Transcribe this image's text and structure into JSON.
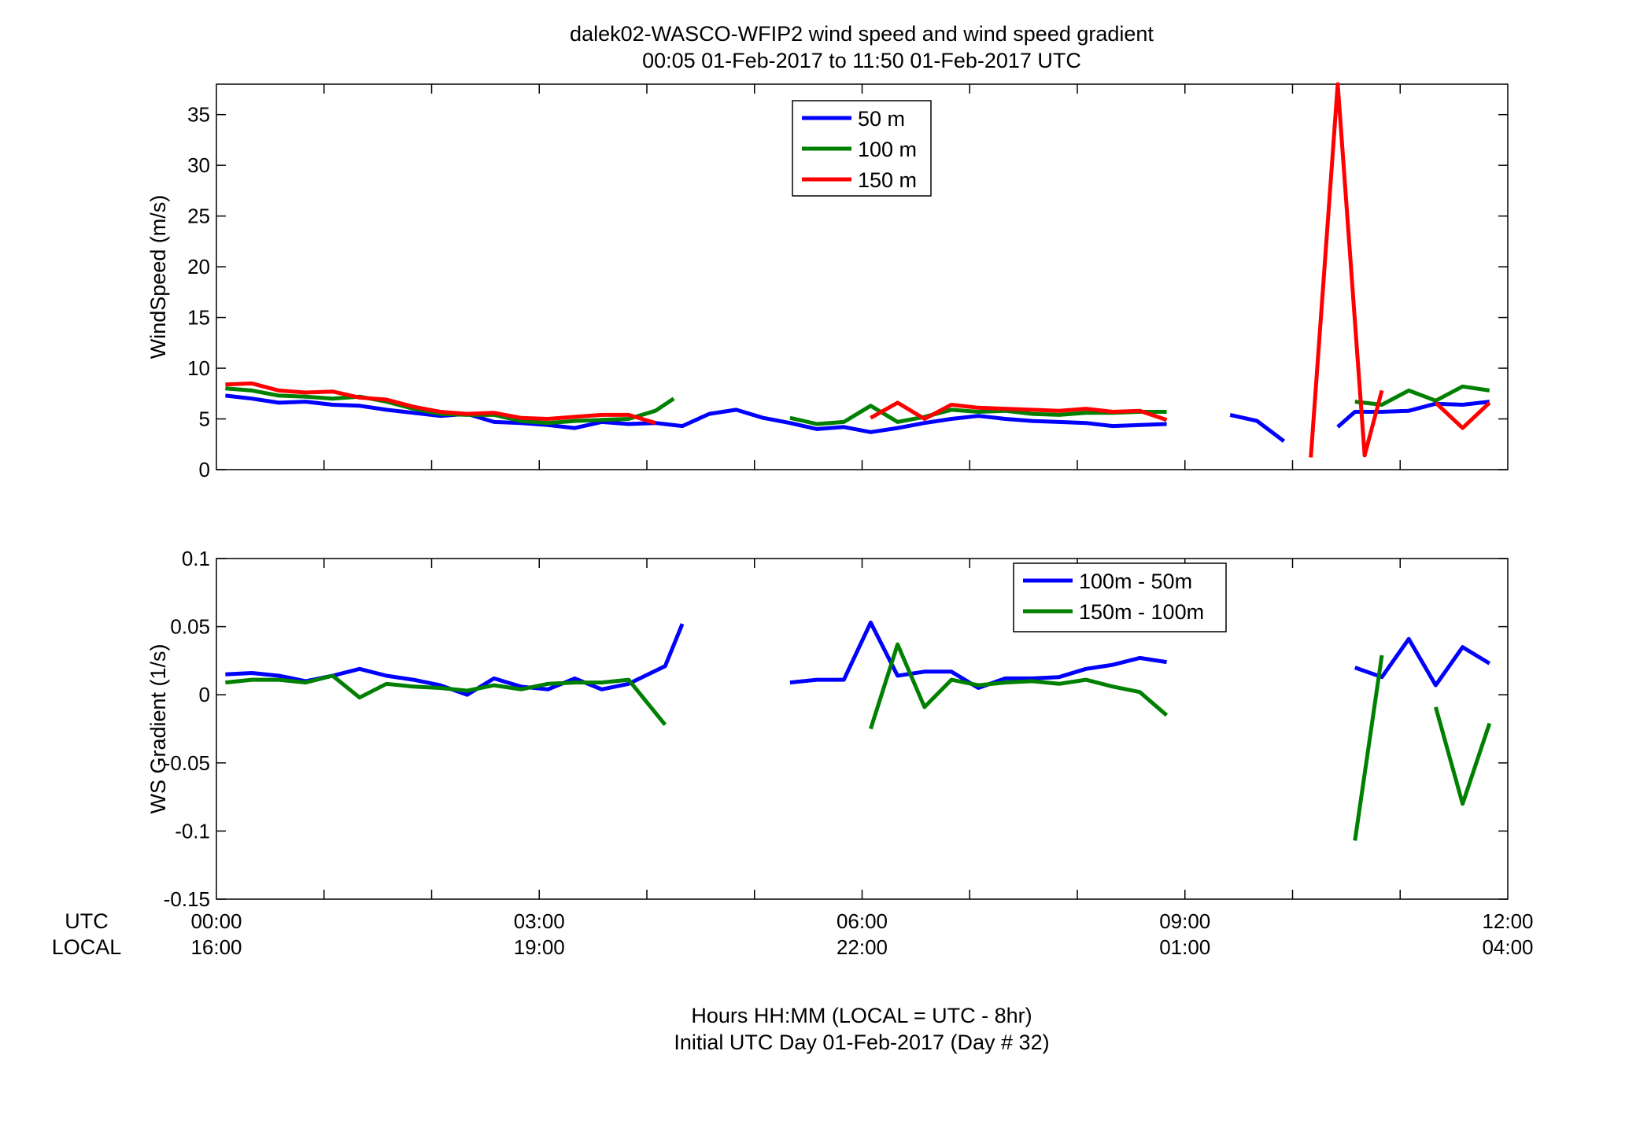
{
  "chart_data": [
    {
      "type": "line",
      "title": "dalek02-WASCO-WFIP2  wind speed and wind speed gradient",
      "subtitle": "00:05 01-Feb-2017 to 11:50 01-Feb-2017  UTC",
      "ylabel": "WindSpeed (m/s)",
      "xlim": [
        0,
        12
      ],
      "ylim": [
        0,
        38
      ],
      "yticks": [
        0,
        5,
        10,
        15,
        20,
        25,
        30,
        35
      ],
      "grid": false,
      "legend_position": "top-center",
      "series": [
        {
          "name": "50 m",
          "color": "#0000ff",
          "points": [
            [
              0.083,
              7.3
            ],
            [
              0.33,
              7.0
            ],
            [
              0.58,
              6.6
            ],
            [
              0.83,
              6.7
            ],
            [
              1.08,
              6.4
            ],
            [
              1.33,
              6.3
            ],
            [
              1.58,
              5.9
            ],
            [
              1.83,
              5.6
            ],
            [
              2.08,
              5.3
            ],
            [
              2.33,
              5.5
            ],
            [
              2.58,
              4.7
            ],
            [
              2.83,
              4.6
            ],
            [
              3.08,
              4.4
            ],
            [
              3.33,
              4.1
            ],
            [
              3.58,
              4.7
            ],
            [
              3.83,
              4.5
            ],
            [
              4.08,
              4.6
            ],
            [
              4.33,
              4.3
            ],
            [
              4.58,
              5.5
            ],
            [
              4.83,
              5.9
            ],
            [
              5.08,
              5.1
            ],
            [
              5.33,
              4.6
            ],
            [
              5.58,
              4.0
            ],
            [
              5.83,
              4.2
            ],
            [
              6.08,
              3.7
            ],
            [
              6.33,
              4.1
            ],
            [
              6.58,
              4.6
            ],
            [
              6.83,
              5.0
            ],
            [
              7.08,
              5.3
            ],
            [
              7.33,
              5.0
            ],
            [
              7.58,
              4.8
            ],
            [
              7.83,
              4.7
            ],
            [
              8.08,
              4.6
            ],
            [
              8.33,
              4.3
            ],
            [
              8.58,
              4.4
            ],
            [
              8.83,
              4.5
            ],
            null,
            [
              9.42,
              5.4
            ],
            [
              9.67,
              4.8
            ],
            [
              9.92,
              2.8
            ],
            null,
            [
              10.42,
              4.2
            ],
            [
              10.58,
              5.7
            ],
            [
              10.83,
              5.7
            ],
            [
              11.08,
              5.8
            ],
            [
              11.33,
              6.5
            ],
            [
              11.58,
              6.4
            ],
            [
              11.83,
              6.7
            ]
          ]
        },
        {
          "name": "100 m",
          "color": "#008000",
          "points": [
            [
              0.083,
              8.0
            ],
            [
              0.33,
              7.8
            ],
            [
              0.58,
              7.3
            ],
            [
              0.83,
              7.2
            ],
            [
              1.08,
              7.0
            ],
            [
              1.33,
              7.2
            ],
            [
              1.58,
              6.7
            ],
            [
              1.83,
              6.0
            ],
            [
              2.08,
              5.5
            ],
            [
              2.33,
              5.4
            ],
            [
              2.58,
              5.4
            ],
            [
              2.83,
              4.8
            ],
            [
              3.08,
              4.6
            ],
            [
              3.33,
              4.8
            ],
            [
              3.58,
              4.9
            ],
            [
              3.83,
              5.0
            ],
            [
              4.08,
              5.8
            ],
            [
              4.25,
              7.0
            ],
            null,
            [
              5.33,
              5.1
            ],
            [
              5.58,
              4.5
            ],
            [
              5.83,
              4.7
            ],
            [
              6.08,
              6.3
            ],
            [
              6.33,
              4.7
            ],
            [
              6.58,
              5.2
            ],
            [
              6.83,
              5.9
            ],
            [
              7.08,
              5.7
            ],
            [
              7.33,
              5.8
            ],
            [
              7.58,
              5.5
            ],
            [
              7.83,
              5.4
            ],
            [
              8.08,
              5.6
            ],
            [
              8.33,
              5.6
            ],
            [
              8.58,
              5.7
            ],
            [
              8.83,
              5.7
            ],
            null,
            [
              10.58,
              6.7
            ],
            [
              10.83,
              6.4
            ],
            [
              11.08,
              7.8
            ],
            [
              11.33,
              6.8
            ],
            [
              11.58,
              8.2
            ],
            [
              11.83,
              7.8
            ]
          ]
        },
        {
          "name": "150 m",
          "color": "#ff0000",
          "points": [
            [
              0.083,
              8.4
            ],
            [
              0.33,
              8.5
            ],
            [
              0.58,
              7.8
            ],
            [
              0.83,
              7.6
            ],
            [
              1.08,
              7.7
            ],
            [
              1.33,
              7.1
            ],
            [
              1.58,
              6.9
            ],
            [
              1.83,
              6.2
            ],
            [
              2.08,
              5.7
            ],
            [
              2.33,
              5.5
            ],
            [
              2.58,
              5.6
            ],
            [
              2.83,
              5.1
            ],
            [
              3.08,
              5.0
            ],
            [
              3.33,
              5.2
            ],
            [
              3.58,
              5.4
            ],
            [
              3.83,
              5.4
            ],
            [
              4.08,
              4.6
            ],
            null,
            [
              6.08,
              5.1
            ],
            [
              6.33,
              6.6
            ],
            [
              6.58,
              5.0
            ],
            [
              6.83,
              6.4
            ],
            [
              7.08,
              6.1
            ],
            [
              7.33,
              6.0
            ],
            [
              7.58,
              5.9
            ],
            [
              7.83,
              5.8
            ],
            [
              8.08,
              6.0
            ],
            [
              8.33,
              5.7
            ],
            [
              8.58,
              5.8
            ],
            [
              8.83,
              4.9
            ],
            null,
            [
              10.17,
              1.2
            ],
            [
              10.42,
              38.0
            ],
            [
              10.67,
              1.4
            ],
            [
              10.83,
              7.8
            ],
            null,
            [
              11.33,
              6.6
            ],
            [
              11.58,
              4.1
            ],
            [
              11.83,
              6.6
            ]
          ]
        }
      ]
    },
    {
      "type": "line",
      "ylabel": "WS Gradient (1/s)",
      "xlabel": "Hours HH:MM  (LOCAL = UTC - 8hr)",
      "xlabel2": "Initial UTC Day 01-Feb-2017 (Day # 32)",
      "xlim": [
        0,
        12
      ],
      "ylim": [
        -0.15,
        0.1
      ],
      "yticks": [
        -0.15,
        -0.1,
        -0.05,
        0,
        0.05,
        0.1
      ],
      "ytick_labels": [
        "-0.15",
        "-0.1",
        "-0.05",
        "0",
        "0.05",
        "0.1"
      ],
      "grid": false,
      "legend_position": "top-right",
      "x_row_labels": [
        "UTC",
        "LOCAL"
      ],
      "xticks": [
        0,
        3,
        6,
        9,
        12
      ],
      "xtick_utc": [
        "00:00",
        "03:00",
        "06:00",
        "09:00",
        "12:00"
      ],
      "xtick_local": [
        "16:00",
        "19:00",
        "22:00",
        "01:00",
        "04:00"
      ],
      "series": [
        {
          "name": "100m - 50m",
          "color": "#0000ff",
          "points": [
            [
              0.083,
              0.015
            ],
            [
              0.33,
              0.016
            ],
            [
              0.58,
              0.014
            ],
            [
              0.83,
              0.01
            ],
            [
              1.08,
              0.014
            ],
            [
              1.33,
              0.019
            ],
            [
              1.58,
              0.014
            ],
            [
              1.83,
              0.011
            ],
            [
              2.08,
              0.007
            ],
            [
              2.33,
              0.0
            ],
            [
              2.58,
              0.012
            ],
            [
              2.83,
              0.006
            ],
            [
              3.08,
              0.004
            ],
            [
              3.33,
              0.012
            ],
            [
              3.58,
              0.004
            ],
            [
              3.83,
              0.008
            ],
            [
              4.17,
              0.021
            ],
            [
              4.33,
              0.052
            ],
            null,
            [
              5.33,
              0.009
            ],
            [
              5.58,
              0.011
            ],
            [
              5.83,
              0.011
            ],
            [
              6.08,
              0.053
            ],
            [
              6.33,
              0.014
            ],
            [
              6.58,
              0.017
            ],
            [
              6.83,
              0.017
            ],
            [
              7.08,
              0.005
            ],
            [
              7.33,
              0.012
            ],
            [
              7.58,
              0.012
            ],
            [
              7.83,
              0.013
            ],
            [
              8.08,
              0.019
            ],
            [
              8.33,
              0.022
            ],
            [
              8.58,
              0.027
            ],
            [
              8.83,
              0.024
            ],
            null,
            [
              10.58,
              0.02
            ],
            [
              10.83,
              0.013
            ],
            [
              11.08,
              0.041
            ],
            [
              11.33,
              0.007
            ],
            [
              11.58,
              0.035
            ],
            [
              11.83,
              0.023
            ]
          ]
        },
        {
          "name": "150m - 100m",
          "color": "#008000",
          "points": [
            [
              0.083,
              0.009
            ],
            [
              0.33,
              0.011
            ],
            [
              0.58,
              0.011
            ],
            [
              0.83,
              0.009
            ],
            [
              1.08,
              0.014
            ],
            [
              1.33,
              -0.002
            ],
            [
              1.58,
              0.008
            ],
            [
              1.83,
              0.006
            ],
            [
              2.08,
              0.005
            ],
            [
              2.33,
              0.003
            ],
            [
              2.58,
              0.007
            ],
            [
              2.83,
              0.004
            ],
            [
              3.08,
              0.008
            ],
            [
              3.33,
              0.009
            ],
            [
              3.58,
              0.009
            ],
            [
              3.83,
              0.011
            ],
            [
              4.17,
              -0.022
            ],
            null,
            [
              6.08,
              -0.025
            ],
            [
              6.33,
              0.037
            ],
            [
              6.58,
              -0.009
            ],
            [
              6.83,
              0.011
            ],
            [
              7.08,
              0.007
            ],
            [
              7.33,
              0.009
            ],
            [
              7.58,
              0.01
            ],
            [
              7.83,
              0.008
            ],
            [
              8.08,
              0.011
            ],
            [
              8.33,
              0.006
            ],
            [
              8.58,
              0.002
            ],
            [
              8.83,
              -0.015
            ],
            null,
            [
              10.58,
              -0.107
            ],
            [
              10.83,
              0.029
            ],
            null,
            [
              11.33,
              -0.009
            ],
            [
              11.58,
              -0.08
            ],
            [
              11.83,
              -0.021
            ]
          ]
        }
      ]
    }
  ]
}
